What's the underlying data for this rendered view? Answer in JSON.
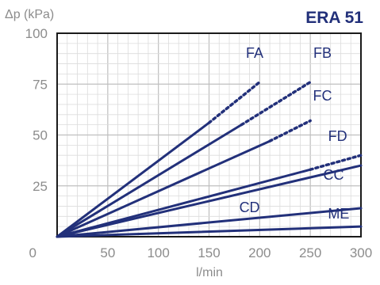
{
  "chart_data": {
    "type": "line",
    "title": "ERA 51",
    "ylabel": "Δp (kPa)",
    "xlabel": "l/min",
    "xlim": [
      0,
      300
    ],
    "ylim": [
      0,
      100
    ],
    "x_ticks": [
      "50",
      "100",
      "150",
      "200",
      "250",
      "300"
    ],
    "y_ticks": [
      "0",
      "25",
      "50",
      "75",
      "100"
    ],
    "grid": true,
    "colors": {
      "series": "#22307a",
      "grid_major": "#bfbfbf",
      "grid_minor": "#dcdcdc",
      "frame": "#1a1a1a",
      "tick_text": "#8c8c8c"
    },
    "series": [
      {
        "name": "FA",
        "x": [
          0,
          150,
          200
        ],
        "y": [
          0,
          56,
          76
        ],
        "solid_until_x": 150
      },
      {
        "name": "FB",
        "x": [
          0,
          182,
          250
        ],
        "y": [
          0,
          55,
          76
        ],
        "solid_until_x": 182
      },
      {
        "name": "FC",
        "x": [
          0,
          210,
          250
        ],
        "y": [
          0,
          47,
          57
        ],
        "solid_until_x": 210
      },
      {
        "name": "FD",
        "x": [
          0,
          250,
          300
        ],
        "y": [
          0,
          33,
          40
        ],
        "solid_until_x": 250
      },
      {
        "name": "CC",
        "x": [
          0,
          300
        ],
        "y": [
          0,
          35
        ],
        "solid_until_x": 300
      },
      {
        "name": "CD",
        "x": [
          0,
          300
        ],
        "y": [
          0,
          14
        ],
        "solid_until_x": 300
      },
      {
        "name": "ME",
        "x": [
          0,
          300
        ],
        "y": [
          0,
          5
        ],
        "solid_until_x": 300
      }
    ]
  }
}
